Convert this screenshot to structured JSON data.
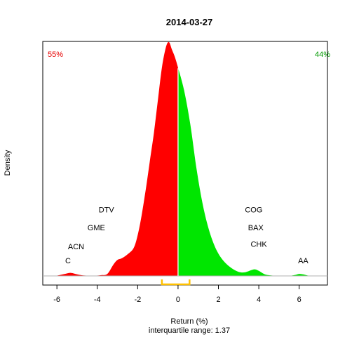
{
  "chart_data": {
    "type": "area",
    "title": "2014-03-27",
    "xlabel": "Return (%)",
    "ylabel": "Density",
    "subtitle": "interquartile range: 1.37",
    "xlim": [
      -6.7,
      7.4
    ],
    "x_ticks": [
      -6,
      -4,
      -2,
      0,
      2,
      4,
      6
    ],
    "tick_labels": [
      "-6",
      "-4",
      "-2",
      "0",
      "2",
      "4",
      "6"
    ],
    "grid": false,
    "negative_share": "55%",
    "positive_share": "44%",
    "colors": {
      "negative": "#ff0000",
      "positive": "#00e600",
      "iqr_bracket": "#ffc000",
      "split_line": "#ffffff"
    },
    "density_curve": {
      "x": [
        -6.0,
        -5.6,
        -5.3,
        -5.0,
        -4.7,
        -4.4,
        -4.1,
        -3.8,
        -3.5,
        -3.2,
        -3.0,
        -2.8,
        -2.5,
        -2.2,
        -2.0,
        -1.8,
        -1.6,
        -1.4,
        -1.2,
        -1.0,
        -0.8,
        -0.6,
        -0.45,
        -0.3,
        -0.15,
        0.0,
        0.3,
        0.6,
        0.9,
        1.2,
        1.5,
        1.8,
        2.1,
        2.4,
        2.7,
        3.0,
        3.3,
        3.6,
        3.8,
        4.0,
        4.3,
        4.6,
        5.0,
        5.5,
        5.8,
        6.0,
        6.2,
        6.4,
        6.6
      ],
      "y": [
        0.001,
        0.008,
        0.012,
        0.006,
        0.002,
        0.001,
        0.001,
        0.003,
        0.008,
        0.045,
        0.063,
        0.069,
        0.085,
        0.11,
        0.16,
        0.24,
        0.34,
        0.45,
        0.56,
        0.69,
        0.82,
        0.9,
        0.92,
        0.89,
        0.86,
        0.82,
        0.73,
        0.6,
        0.43,
        0.29,
        0.19,
        0.12,
        0.075,
        0.047,
        0.028,
        0.016,
        0.014,
        0.022,
        0.026,
        0.02,
        0.006,
        0.002,
        0.0005,
        0.0005,
        0.004,
        0.008,
        0.006,
        0.002,
        0.0005
      ]
    },
    "iqr": [
      -0.8,
      0.57
    ],
    "annotations": [
      {
        "text": "C",
        "x": -5.45,
        "y": 0.05
      },
      {
        "text": "ACN",
        "x": -5.05,
        "y": 0.105
      },
      {
        "text": "GME",
        "x": -4.05,
        "y": 0.18
      },
      {
        "text": "DTV",
        "x": -3.55,
        "y": 0.25
      },
      {
        "text": "COG",
        "x": 3.75,
        "y": 0.25
      },
      {
        "text": "BAX",
        "x": 3.85,
        "y": 0.18
      },
      {
        "text": "CHK",
        "x": 4.0,
        "y": 0.115
      },
      {
        "text": "AA",
        "x": 6.2,
        "y": 0.05
      }
    ]
  }
}
